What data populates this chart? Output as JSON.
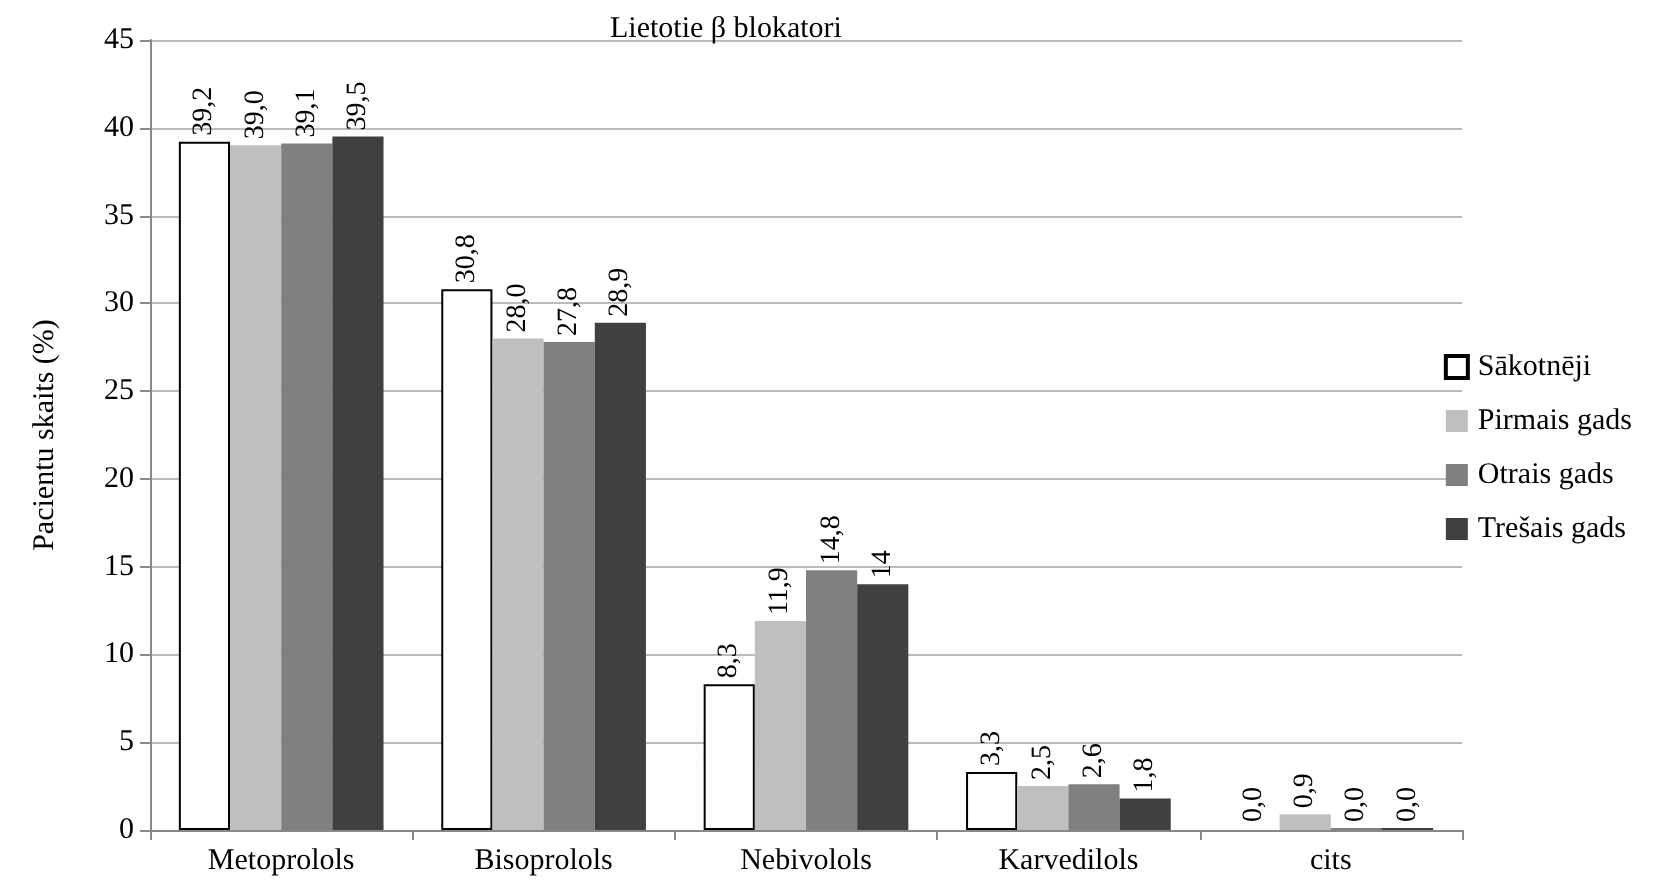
{
  "chart_data": {
    "type": "bar",
    "title": "Lietotie β blokatori",
    "ylabel": "Pacientu skaits (%)",
    "categories": [
      "Metoprolols",
      "Bisoprolols",
      "Nebivolols",
      "Karvedilols",
      "cits"
    ],
    "series": [
      {
        "name": "Sākotnēji",
        "color": "#ffffff",
        "values": [
          39.2,
          30.8,
          8.3,
          3.3,
          0.0
        ],
        "value_labels": [
          "39,2",
          "30,8",
          "8,3",
          "3,3",
          "0,0"
        ]
      },
      {
        "name": "Pirmais gads",
        "color": "#bfbfbf",
        "values": [
          39.0,
          28.0,
          11.9,
          2.5,
          0.9
        ],
        "value_labels": [
          "39,0",
          "28,0",
          "11,9",
          "2,5",
          "0,9"
        ]
      },
      {
        "name": "Otrais gads",
        "color": "#808080",
        "values": [
          39.1,
          27.8,
          14.8,
          2.6,
          0.0
        ],
        "value_labels": [
          "39,1",
          "27,8",
          "14,8",
          "2,6",
          "0,0"
        ]
      },
      {
        "name": "Trešais gads",
        "color": "#404040",
        "values": [
          39.5,
          28.9,
          14,
          1.8,
          0.0
        ],
        "value_labels": [
          "39,5",
          "28,9",
          "14",
          "1,8",
          "0,0"
        ]
      }
    ],
    "ylim": [
      0,
      45
    ],
    "yticks": [
      0,
      5,
      10,
      15,
      20,
      25,
      30,
      35,
      40,
      45
    ],
    "grid": "y",
    "legend": "right"
  }
}
